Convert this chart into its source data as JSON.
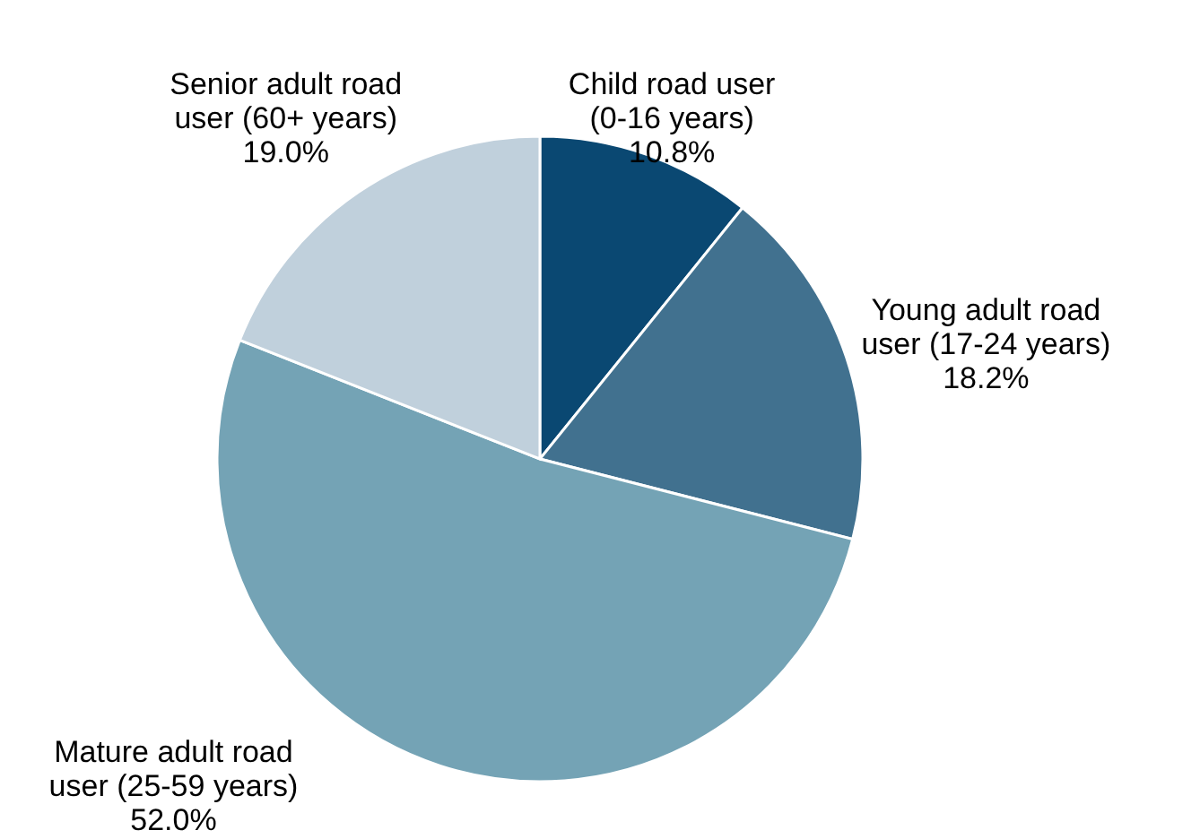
{
  "chart_data": {
    "type": "pie",
    "categories": [
      "Child road user\n(0-16 years)",
      "Young adult road\nuser (17-24 years)",
      "Mature adult road\nuser (25-59 years)",
      "Senior adult road\nuser (60+ years)"
    ],
    "values": [
      10.8,
      18.2,
      52.0,
      19.0
    ],
    "value_labels": [
      "10.8%",
      "18.2%",
      "52.0%",
      "19.0%"
    ],
    "colors": [
      "#0a4872",
      "#41718f",
      "#74a3b5",
      "#c0d0dc"
    ]
  }
}
